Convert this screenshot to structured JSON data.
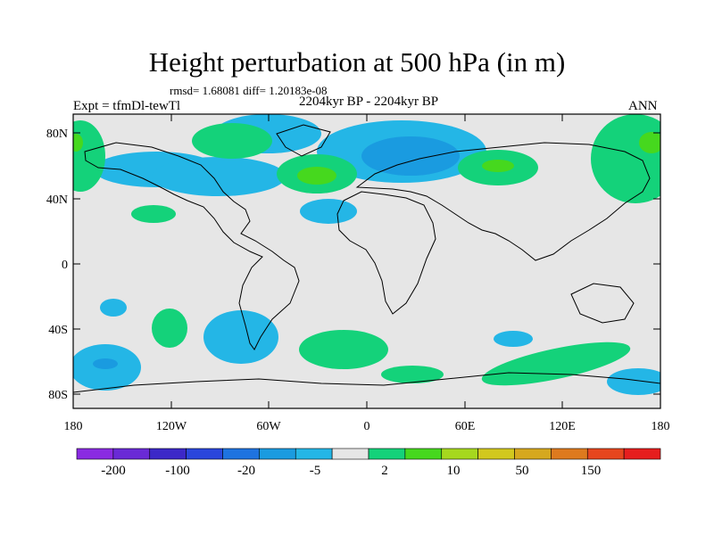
{
  "title": "Height perturbation at 500 hPa (in m)",
  "stats": "rmsd= 1.68081 diff= 1.20183e-08",
  "subtitle": "2204kyr BP - 2204kyr BP",
  "expt": "Expt = tfmDl-tewTl",
  "season": "ANN",
  "lat_ticks": [
    "80N",
    "40N",
    "0",
    "40S",
    "80S"
  ],
  "lon_ticks": [
    "180",
    "120W",
    "60W",
    "0",
    "60E",
    "120E",
    "180"
  ],
  "colorbar": {
    "colors": [
      "#8a2be2",
      "#6a2ad6",
      "#3c28c8",
      "#2a46dc",
      "#1e73e0",
      "#1a9be0",
      "#24b6e6",
      "#e6e6e6",
      "#14d27a",
      "#46d81e",
      "#a6d81e",
      "#d2c81e",
      "#d6a81e",
      "#de7a1e",
      "#e6461e",
      "#e61e1e"
    ],
    "labels": [
      "-200",
      "-100",
      "-20",
      "-5",
      "2",
      "10",
      "50",
      "150"
    ]
  },
  "contour_colors": {
    "neg_light": "#24b6e6",
    "neg_mid": "#1a9be0",
    "pos_light": "#14d27a",
    "pos_mid": "#46d81e",
    "background": "#e6e6e6"
  }
}
